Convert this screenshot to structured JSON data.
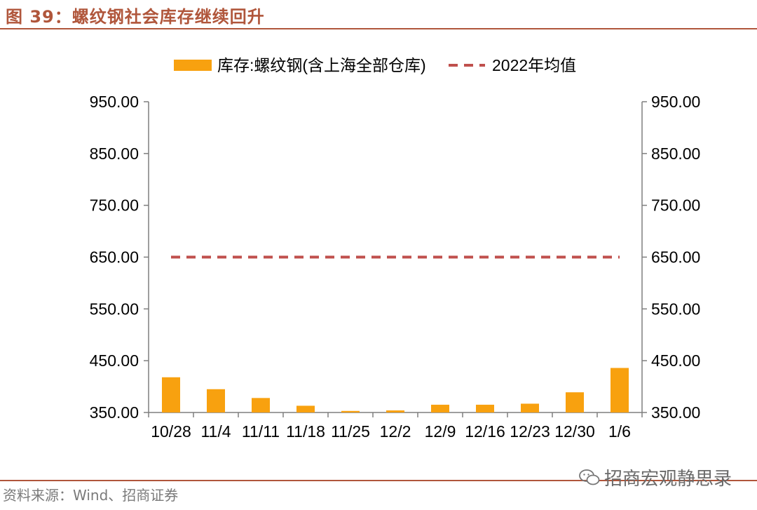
{
  "page": {
    "title": "图 39：螺纹钢社会库存继续回升",
    "source": "资料来源：Wind、招商证券",
    "watermark": "招商宏观静思录",
    "watermark_icon": "wechat-icon"
  },
  "chart_data": {
    "type": "bar",
    "title": "",
    "xlabel": "",
    "ylabel": "",
    "categories": [
      "10/28",
      "11/4",
      "11/11",
      "11/18",
      "11/25",
      "12/2",
      "12/9",
      "12/16",
      "12/23",
      "12/30",
      "1/6"
    ],
    "series": [
      {
        "name": "库存:螺纹钢(含上海全部仓库)",
        "type": "bar",
        "color": "#f8a10f",
        "values": [
          418,
          395,
          378,
          363,
          353,
          354,
          365,
          365,
          367,
          389,
          436
        ]
      },
      {
        "name": "2022年均值",
        "type": "line",
        "style": "dashed",
        "color": "#c0504d",
        "values": [
          650,
          650,
          650,
          650,
          650,
          650,
          650,
          650,
          650,
          650,
          650
        ]
      }
    ],
    "ylim": [
      350,
      950
    ],
    "y_ticks": [
      "350.00",
      "450.00",
      "550.00",
      "650.00",
      "750.00",
      "850.00",
      "950.00"
    ],
    "y2_ticks": [
      "350.00",
      "450.00",
      "550.00",
      "650.00",
      "750.00",
      "850.00",
      "950.00"
    ],
    "legend_position": "top",
    "grid": false
  }
}
